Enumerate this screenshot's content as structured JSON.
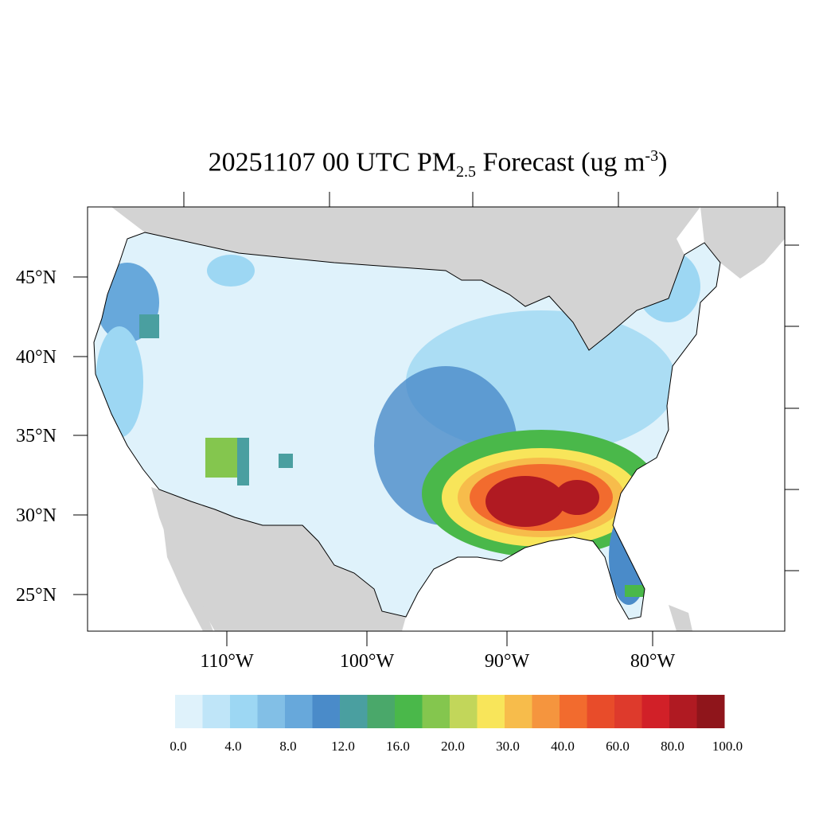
{
  "title": {
    "main": "20251107 00 UTC PM",
    "subscript": "2.5",
    "suffix": " Forecast (ug m",
    "superscript": "-3",
    "close": ")"
  },
  "map": {
    "lat_labels": [
      "45°N",
      "40°N",
      "35°N",
      "30°N",
      "25°N"
    ],
    "lon_labels": [
      "110°W",
      "100°W",
      "90°W",
      "80°W"
    ],
    "colors": {
      "ocean": "#ffffff",
      "land_outside": "#d3d3d3",
      "border": "#000000"
    }
  },
  "colorbar": {
    "colors": [
      "#dff2fb",
      "#bfe5f8",
      "#9dd7f3",
      "#82bfe6",
      "#67a8db",
      "#4a8bc9",
      "#4a9fa0",
      "#4aa86a",
      "#4ab84a",
      "#84c64e",
      "#c2d65a",
      "#f8e55a",
      "#f7bc4b",
      "#f5953e",
      "#f26b2e",
      "#e84c2a",
      "#de3a2c",
      "#d12028",
      "#b01a22",
      "#8f151b"
    ],
    "labels": [
      "0.0",
      "4.0",
      "8.0",
      "12.0",
      "16.0",
      "20.0",
      "30.0",
      "40.0",
      "60.0",
      "80.0",
      "100.0"
    ]
  }
}
